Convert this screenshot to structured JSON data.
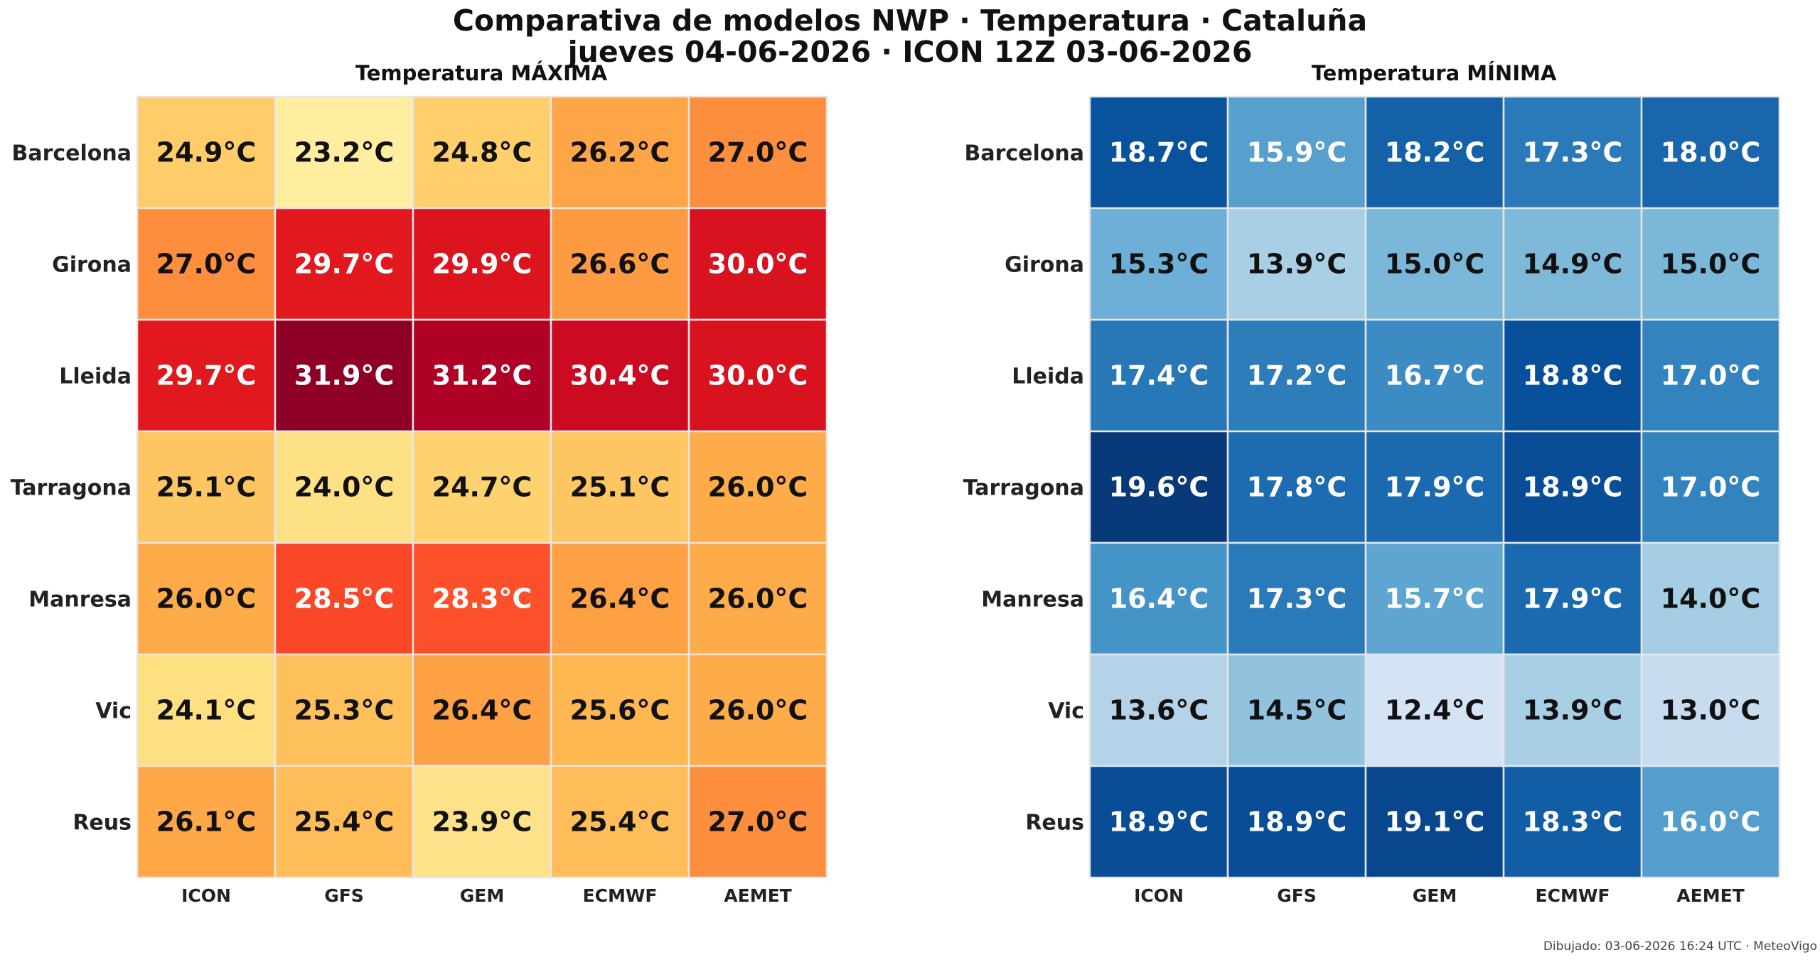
{
  "title_line1": "Comparativa de modelos NWP · Temperatura · Cataluña",
  "title_line2": "jueves 04-06-2026  ·  ICON 12Z 03-06-2026",
  "footer": "Dibujado: 03-06-2026 16:24 UTC · MeteoVigo",
  "chart_data": [
    {
      "type": "heatmap",
      "title": "Temperatura MÁXIMA",
      "colormap": "YlOrRd",
      "columns": [
        "ICON",
        "GFS",
        "GEM",
        "ECMWF",
        "AEMET"
      ],
      "rows": [
        "Barcelona",
        "Girona",
        "Lleida",
        "Tarragona",
        "Manresa",
        "Vic",
        "Reus"
      ],
      "unit": "°C",
      "values": [
        [
          24.9,
          23.2,
          24.8,
          26.2,
          27.0
        ],
        [
          27.0,
          29.7,
          29.9,
          26.6,
          30.0
        ],
        [
          29.7,
          31.9,
          31.2,
          30.4,
          30.0
        ],
        [
          25.1,
          24.0,
          24.7,
          25.1,
          26.0
        ],
        [
          26.0,
          28.5,
          28.3,
          26.4,
          26.0
        ],
        [
          24.1,
          25.3,
          26.4,
          25.6,
          26.0
        ],
        [
          26.1,
          25.4,
          23.9,
          25.4,
          27.0
        ]
      ]
    },
    {
      "type": "heatmap",
      "title": "Temperatura MÍNIMA",
      "colormap": "Blues",
      "columns": [
        "ICON",
        "GFS",
        "GEM",
        "ECMWF",
        "AEMET"
      ],
      "rows": [
        "Barcelona",
        "Girona",
        "Lleida",
        "Tarragona",
        "Manresa",
        "Vic",
        "Reus"
      ],
      "unit": "°C",
      "values": [
        [
          18.7,
          15.9,
          18.2,
          17.3,
          18.0
        ],
        [
          15.3,
          13.9,
          15.0,
          14.9,
          15.0
        ],
        [
          17.4,
          17.2,
          16.7,
          18.8,
          17.0
        ],
        [
          19.6,
          17.8,
          17.9,
          18.9,
          17.0
        ],
        [
          16.4,
          17.3,
          15.7,
          17.9,
          14.0
        ],
        [
          13.6,
          14.5,
          12.4,
          13.9,
          13.0
        ],
        [
          18.9,
          18.9,
          19.1,
          18.3,
          16.0
        ]
      ]
    }
  ]
}
